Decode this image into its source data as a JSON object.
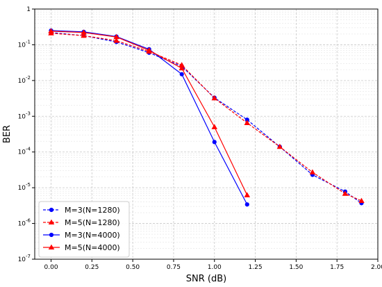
{
  "chart_data": {
    "type": "line",
    "xlabel": "SNR (dB)",
    "ylabel": "BER",
    "xlim": [
      -0.1,
      2.0
    ],
    "ylim_log10": [
      -7,
      0
    ],
    "y_scale": "log",
    "grid": true,
    "legend_position": "bottom-left",
    "x_ticks": [
      "0.00",
      "0.25",
      "0.50",
      "0.75",
      "1.00",
      "1.25",
      "1.50",
      "1.75",
      "2.00"
    ],
    "x_tick_values": [
      0,
      0.25,
      0.5,
      0.75,
      1.0,
      1.25,
      1.5,
      1.75,
      2.0
    ],
    "y_tick_exponents": [
      0,
      -1,
      -2,
      -3,
      -4,
      -5,
      -6,
      -7
    ],
    "y_tick_labels": [
      {
        "base": "1",
        "exp": ""
      },
      {
        "base": "10",
        "exp": "-1"
      },
      {
        "base": "10",
        "exp": "-2"
      },
      {
        "base": "10",
        "exp": "-3"
      },
      {
        "base": "10",
        "exp": "-4"
      },
      {
        "base": "10",
        "exp": "-5"
      },
      {
        "base": "10",
        "exp": "-6"
      },
      {
        "base": "10",
        "exp": "-7"
      }
    ],
    "series": [
      {
        "name": "M=3(N=1280)",
        "color": "#0000ff",
        "dash": "dashed",
        "marker": "circle",
        "x": [
          0.0,
          0.2,
          0.4,
          0.6,
          0.8,
          1.0,
          1.2,
          1.4,
          1.6,
          1.8,
          1.9
        ],
        "y": [
          0.22,
          0.18,
          0.12,
          0.06,
          0.025,
          0.0033,
          0.0008,
          0.00014,
          2.3e-05,
          7.8e-06,
          3.7e-06
        ]
      },
      {
        "name": "M=5(N=1280)",
        "color": "#ff0000",
        "dash": "dashed",
        "marker": "triangle",
        "x": [
          0.0,
          0.2,
          0.4,
          0.6,
          0.8,
          1.0,
          1.2,
          1.4,
          1.6,
          1.8,
          1.9
        ],
        "y": [
          0.21,
          0.18,
          0.13,
          0.065,
          0.027,
          0.0032,
          0.00065,
          0.00014,
          2.7e-05,
          6.8e-06,
          4.3e-06
        ]
      },
      {
        "name": "M=3(N=4000)",
        "color": "#0000ff",
        "dash": "solid",
        "marker": "circle",
        "x": [
          0.0,
          0.2,
          0.4,
          0.6,
          0.8,
          1.0,
          1.2
        ],
        "y": [
          0.25,
          0.23,
          0.17,
          0.075,
          0.015,
          0.00019,
          3.4e-06
        ]
      },
      {
        "name": "M=5(N=4000)",
        "color": "#ff0000",
        "dash": "solid",
        "marker": "triangle",
        "x": [
          0.0,
          0.2,
          0.4,
          0.6,
          0.8,
          1.0,
          1.2
        ],
        "y": [
          0.24,
          0.22,
          0.165,
          0.07,
          0.022,
          0.0005,
          6.2e-06
        ]
      }
    ]
  }
}
